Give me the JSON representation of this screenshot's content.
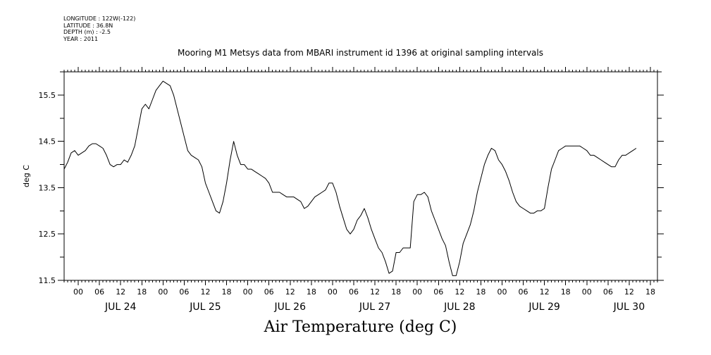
{
  "header": {
    "longitude": "LONGITUDE : 122W(-122)",
    "latitude": "LATITUDE : 36.8N",
    "depth": "DEPTH (m) : -2.5",
    "year": "YEAR : 2011"
  },
  "chart_data": {
    "type": "line",
    "title": "Mooring M1 Metsys data from MBARI instrument id 1396 at original sampling intervals",
    "xlabel": "Air Temperature (deg C)",
    "ylabel": "deg C",
    "xlim_hours": [
      -4,
      164
    ],
    "ylim": [
      11.5,
      16.0
    ],
    "yticks": [
      11.5,
      12.5,
      13.5,
      14.5,
      15.5
    ],
    "ytick_labels": [
      "11.5",
      "12.5",
      "13.5",
      "14.5",
      "15.5"
    ],
    "hour_ticks": [
      "00",
      "06",
      "12",
      "18",
      "00",
      "06",
      "12",
      "18",
      "00",
      "06",
      "12",
      "18",
      "00",
      "06",
      "12",
      "18",
      "00",
      "06",
      "12",
      "18",
      "00",
      "06",
      "12",
      "18",
      "00",
      "06",
      "12",
      "18"
    ],
    "day_labels": [
      "JUL 24",
      "JUL 25",
      "JUL 26",
      "JUL 27",
      "JUL 28",
      "JUL 29",
      "JUL 30"
    ],
    "series": [
      {
        "points": [
          [
            -4,
            13.9
          ],
          [
            -3,
            14.05
          ],
          [
            -2,
            14.25
          ],
          [
            -1,
            14.3
          ],
          [
            0,
            14.2
          ],
          [
            1,
            14.25
          ],
          [
            2,
            14.3
          ],
          [
            3,
            14.4
          ],
          [
            4,
            14.45
          ],
          [
            5,
            14.45
          ],
          [
            6,
            14.4
          ],
          [
            7,
            14.35
          ],
          [
            8,
            14.2
          ],
          [
            9,
            14.0
          ],
          [
            10,
            13.95
          ],
          [
            11,
            14.0
          ],
          [
            12,
            14.0
          ],
          [
            13,
            14.1
          ],
          [
            14,
            14.05
          ],
          [
            15,
            14.2
          ],
          [
            16,
            14.4
          ],
          [
            17,
            14.8
          ],
          [
            18,
            15.2
          ],
          [
            19,
            15.3
          ],
          [
            20,
            15.2
          ],
          [
            21,
            15.4
          ],
          [
            22,
            15.6
          ],
          [
            23,
            15.7
          ],
          [
            24,
            15.8
          ],
          [
            25,
            15.75
          ],
          [
            26,
            15.7
          ],
          [
            27,
            15.5
          ],
          [
            28,
            15.2
          ],
          [
            29,
            14.9
          ],
          [
            30,
            14.6
          ],
          [
            31,
            14.3
          ],
          [
            32,
            14.2
          ],
          [
            33,
            14.15
          ],
          [
            34,
            14.1
          ],
          [
            35,
            13.95
          ],
          [
            36,
            13.6
          ],
          [
            37,
            13.4
          ],
          [
            38,
            13.2
          ],
          [
            39,
            13.0
          ],
          [
            40,
            12.95
          ],
          [
            41,
            13.2
          ],
          [
            42,
            13.6
          ],
          [
            43,
            14.1
          ],
          [
            44,
            14.5
          ],
          [
            45,
            14.2
          ],
          [
            46,
            14.0
          ],
          [
            47,
            14.0
          ],
          [
            48,
            13.9
          ],
          [
            49,
            13.9
          ],
          [
            50,
            13.85
          ],
          [
            51,
            13.8
          ],
          [
            52,
            13.75
          ],
          [
            53,
            13.7
          ],
          [
            54,
            13.6
          ],
          [
            55,
            13.4
          ],
          [
            56,
            13.4
          ],
          [
            57,
            13.4
          ],
          [
            58,
            13.35
          ],
          [
            59,
            13.3
          ],
          [
            60,
            13.3
          ],
          [
            61,
            13.3
          ],
          [
            62,
            13.25
          ],
          [
            63,
            13.2
          ],
          [
            64,
            13.05
          ],
          [
            65,
            13.1
          ],
          [
            66,
            13.2
          ],
          [
            67,
            13.3
          ],
          [
            68,
            13.35
          ],
          [
            69,
            13.4
          ],
          [
            70,
            13.45
          ],
          [
            71,
            13.6
          ],
          [
            72,
            13.6
          ],
          [
            73,
            13.4
          ],
          [
            74,
            13.1
          ],
          [
            75,
            12.85
          ],
          [
            76,
            12.6
          ],
          [
            77,
            12.5
          ],
          [
            78,
            12.6
          ],
          [
            79,
            12.8
          ],
          [
            80,
            12.9
          ],
          [
            81,
            13.05
          ],
          [
            82,
            12.85
          ],
          [
            83,
            12.6
          ],
          [
            84,
            12.4
          ],
          [
            85,
            12.2
          ],
          [
            86,
            12.1
          ],
          [
            87,
            11.9
          ],
          [
            88,
            11.65
          ],
          [
            89,
            11.7
          ],
          [
            90,
            12.1
          ],
          [
            91,
            12.1
          ],
          [
            92,
            12.2
          ],
          [
            93,
            12.2
          ],
          [
            94,
            12.2
          ],
          [
            95,
            13.2
          ],
          [
            96,
            13.35
          ],
          [
            97,
            13.35
          ],
          [
            98,
            13.4
          ],
          [
            99,
            13.3
          ],
          [
            100,
            13.0
          ],
          [
            101,
            12.8
          ],
          [
            102,
            12.6
          ],
          [
            103,
            12.4
          ],
          [
            104,
            12.25
          ],
          [
            105,
            11.9
          ],
          [
            106,
            11.6
          ],
          [
            107,
            11.6
          ],
          [
            108,
            11.9
          ],
          [
            109,
            12.3
          ],
          [
            110,
            12.5
          ],
          [
            111,
            12.7
          ],
          [
            112,
            13.0
          ],
          [
            113,
            13.4
          ],
          [
            114,
            13.7
          ],
          [
            115,
            14.0
          ],
          [
            116,
            14.2
          ],
          [
            117,
            14.35
          ],
          [
            118,
            14.3
          ],
          [
            119,
            14.1
          ],
          [
            120,
            14.0
          ],
          [
            121,
            13.85
          ],
          [
            122,
            13.65
          ],
          [
            123,
            13.4
          ],
          [
            124,
            13.2
          ],
          [
            125,
            13.1
          ],
          [
            126,
            13.05
          ],
          [
            127,
            13.0
          ],
          [
            128,
            12.95
          ],
          [
            129,
            12.95
          ],
          [
            130,
            13.0
          ],
          [
            131,
            13.0
          ],
          [
            132,
            13.05
          ],
          [
            133,
            13.5
          ],
          [
            134,
            13.9
          ],
          [
            135,
            14.1
          ],
          [
            136,
            14.3
          ],
          [
            137,
            14.35
          ],
          [
            138,
            14.4
          ],
          [
            139,
            14.4
          ],
          [
            140,
            14.4
          ],
          [
            141,
            14.4
          ],
          [
            142,
            14.4
          ],
          [
            143,
            14.35
          ],
          [
            144,
            14.3
          ],
          [
            145,
            14.2
          ],
          [
            146,
            14.2
          ],
          [
            147,
            14.15
          ],
          [
            148,
            14.1
          ],
          [
            149,
            14.05
          ],
          [
            150,
            14.0
          ],
          [
            151,
            13.95
          ],
          [
            152,
            13.95
          ],
          [
            153,
            14.1
          ],
          [
            154,
            14.2
          ],
          [
            155,
            14.2
          ],
          [
            156,
            14.25
          ],
          [
            157,
            14.3
          ],
          [
            158,
            14.35
          ]
        ]
      }
    ]
  }
}
